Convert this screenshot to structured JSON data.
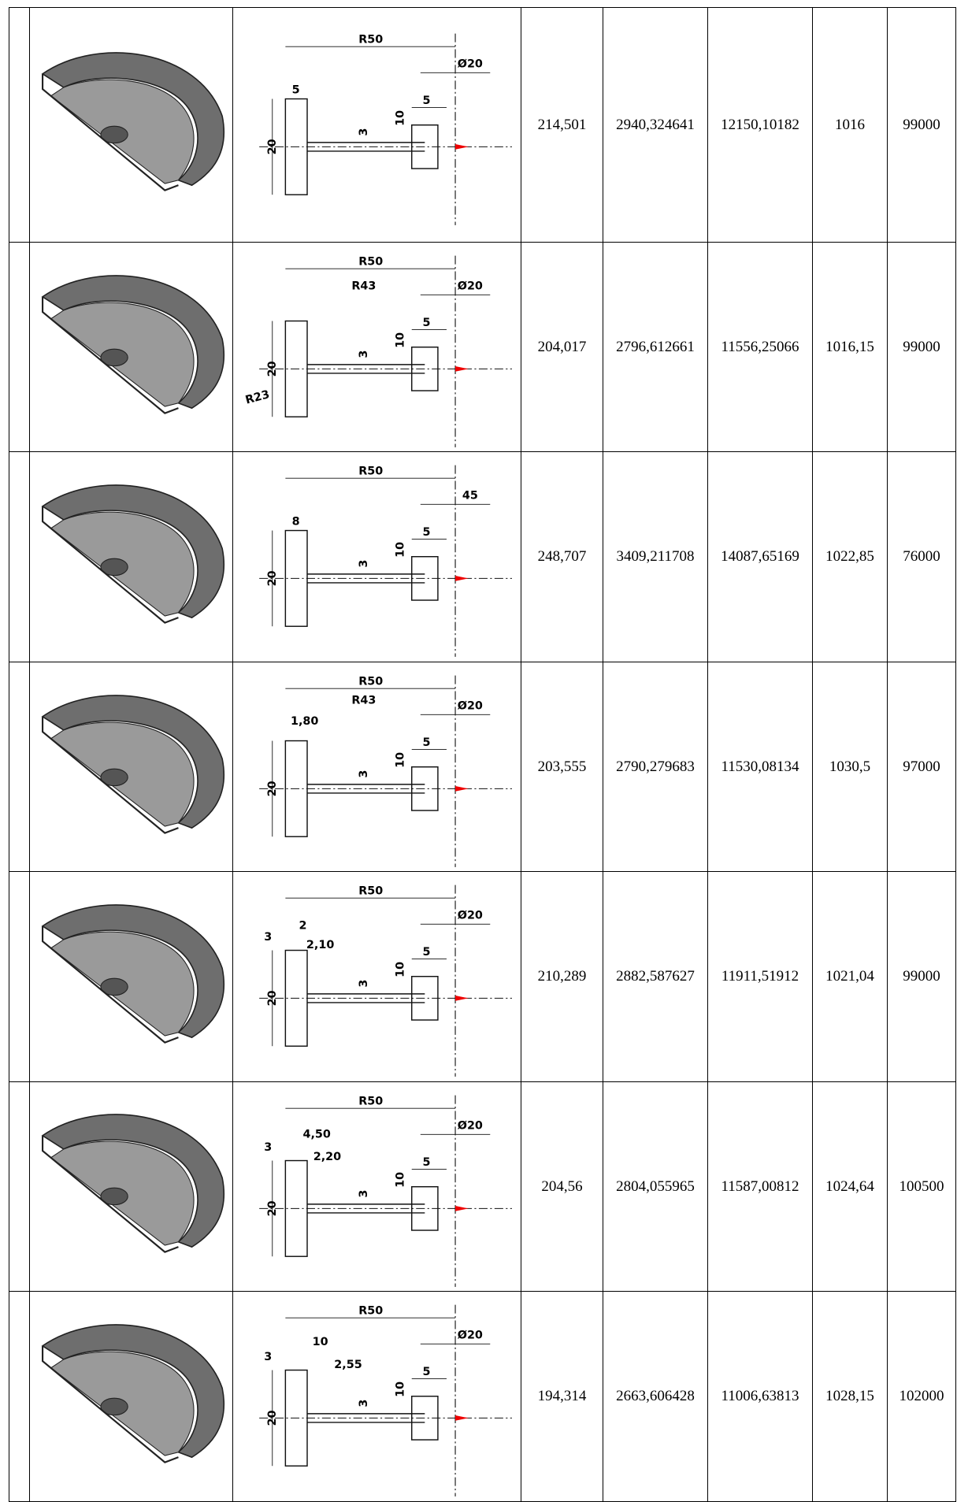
{
  "table": {
    "rows": [
      {
        "dims": [
          "R50",
          "Ø20",
          "5",
          "20",
          "3",
          "10",
          "5"
        ],
        "cells": [
          "214,501",
          "2940,324641",
          "12150,10182",
          "1016",
          "99000"
        ]
      },
      {
        "dims": [
          "R50",
          "Ø20",
          "5",
          "20",
          "3",
          "10",
          "R43",
          "R23"
        ],
        "cells": [
          "204,017",
          "2796,612661",
          "11556,25066",
          "1016,15",
          "99000"
        ]
      },
      {
        "dims": [
          "R50",
          "45",
          "5",
          "20",
          "3",
          "10",
          "8"
        ],
        "cells": [
          "248,707",
          "3409,211708",
          "14087,65169",
          "1022,85",
          "76000"
        ]
      },
      {
        "dims": [
          "R50",
          "Ø20",
          "5",
          "20",
          "3",
          "10",
          "R43",
          "1,80"
        ],
        "cells": [
          "203,555",
          "2790,279683",
          "11530,08134",
          "1030,5",
          "97000"
        ]
      },
      {
        "dims": [
          "R50",
          "Ø20",
          "5",
          "20",
          "3",
          "10",
          "2",
          "3",
          "2,10"
        ],
        "cells": [
          "210,289",
          "2882,587627",
          "11911,51912",
          "1021,04",
          "99000"
        ]
      },
      {
        "dims": [
          "R50",
          "Ø20",
          "5",
          "20",
          "3",
          "10",
          "4,50",
          "3",
          "2,20"
        ],
        "cells": [
          "204,56",
          "2804,055965",
          "11587,00812",
          "1024,64",
          "100500"
        ]
      },
      {
        "dims": [
          "R50",
          "Ø20",
          "5",
          "20",
          "3",
          "10",
          "10",
          "3",
          "2,55"
        ],
        "cells": [
          "194,314",
          "2663,606428",
          "11006,63813",
          "1028,15",
          "102000"
        ]
      }
    ]
  }
}
